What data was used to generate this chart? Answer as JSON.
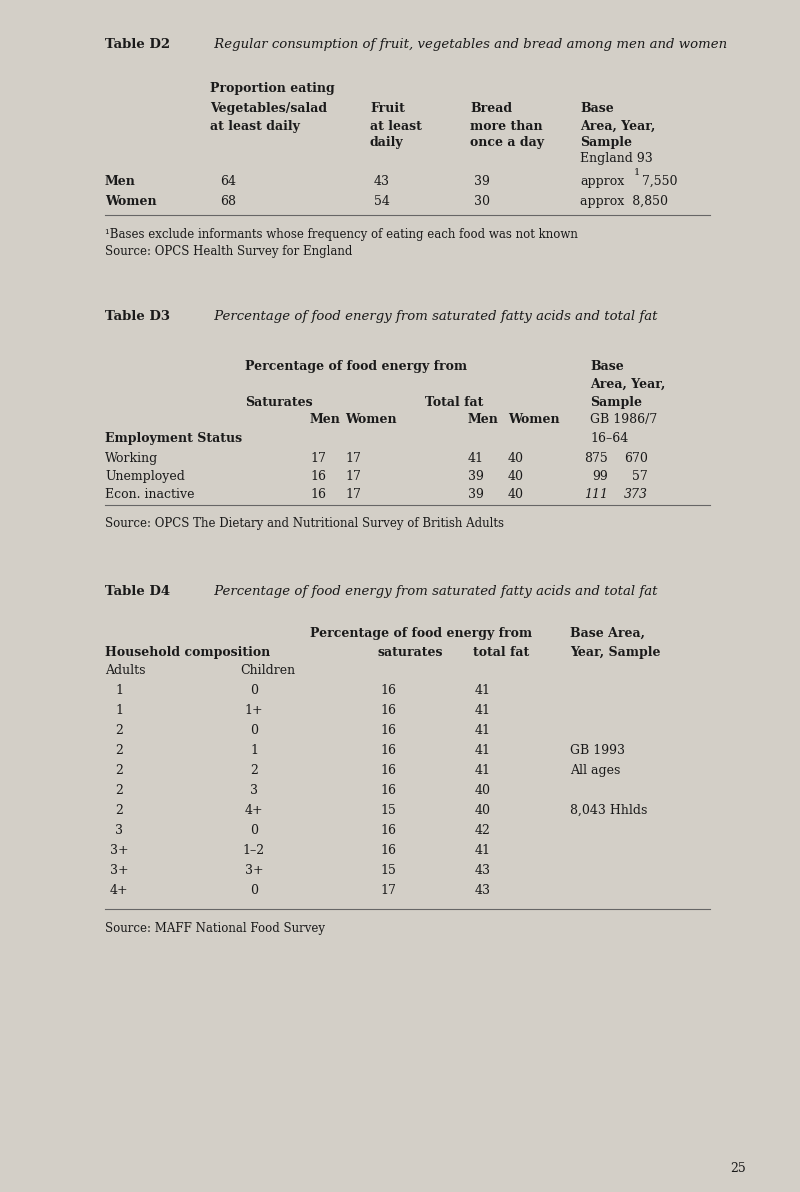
{
  "bg_color": "#d3cfc7",
  "text_color": "#1a1a1a",
  "page_number": "25",
  "table_d2": {
    "title_bold": "Table D2",
    "title_italic": " Regular consumption of fruit, vegetables and bread among men and women",
    "footnote": "¹Bases exclude informants whose frequency of eating each food was not known",
    "source": "Source: OPCS Health Survey for England",
    "rows": [
      {
        "label": "Men",
        "veg": "64",
        "fruit": "43",
        "bread": "39"
      },
      {
        "label": "Women",
        "veg": "68",
        "fruit": "54",
        "bread": "30"
      }
    ]
  },
  "table_d3": {
    "title_bold": "Table D3",
    "title_italic": " Percentage of food energy from saturated fatty acids and total fat",
    "section_label": "Employment Status",
    "age_range": "16–64",
    "rows": [
      {
        "label": "Working",
        "sat_m": "17",
        "sat_w": "17",
        "fat_m": "41",
        "fat_w": "40",
        "base_m": "875",
        "base_w": "670",
        "italic": false
      },
      {
        "label": "Unemployed",
        "sat_m": "16",
        "sat_w": "17",
        "fat_m": "39",
        "fat_w": "40",
        "base_m": "99",
        "base_w": "57",
        "italic": false
      },
      {
        "label": "Econ. inactive",
        "sat_m": "16",
        "sat_w": "17",
        "fat_m": "39",
        "fat_w": "40",
        "base_m": "111",
        "base_w": "373",
        "italic": true
      }
    ],
    "source": "Source: OPCS The Dietary and Nutritional Survey of British Adults"
  },
  "table_d4": {
    "title_bold": "Table D4",
    "title_italic": " Percentage of food energy from saturated fatty acids and total fat",
    "rows": [
      {
        "adults": "1",
        "children": "0",
        "sat": "16",
        "fat": "41",
        "note": ""
      },
      {
        "adults": "1",
        "children": "1+",
        "sat": "16",
        "fat": "41",
        "note": ""
      },
      {
        "adults": "2",
        "children": "0",
        "sat": "16",
        "fat": "41",
        "note": ""
      },
      {
        "adults": "2",
        "children": "1",
        "sat": "16",
        "fat": "41",
        "note": "GB 1993"
      },
      {
        "adults": "2",
        "children": "2",
        "sat": "16",
        "fat": "41",
        "note": "All ages"
      },
      {
        "adults": "2",
        "children": "3",
        "sat": "16",
        "fat": "40",
        "note": ""
      },
      {
        "adults": "2",
        "children": "4+",
        "sat": "15",
        "fat": "40",
        "note": "8,043 Hhlds"
      },
      {
        "adults": "3",
        "children": "0",
        "sat": "16",
        "fat": "42",
        "note": ""
      },
      {
        "adults": "3+",
        "children": "1–2",
        "sat": "16",
        "fat": "41",
        "note": ""
      },
      {
        "adults": "3+",
        "children": "3+",
        "sat": "15",
        "fat": "43",
        "note": ""
      },
      {
        "adults": "4+",
        "children": "0",
        "sat": "17",
        "fat": "43",
        "note": ""
      }
    ],
    "source": "Source: MAFF National Food Survey"
  }
}
